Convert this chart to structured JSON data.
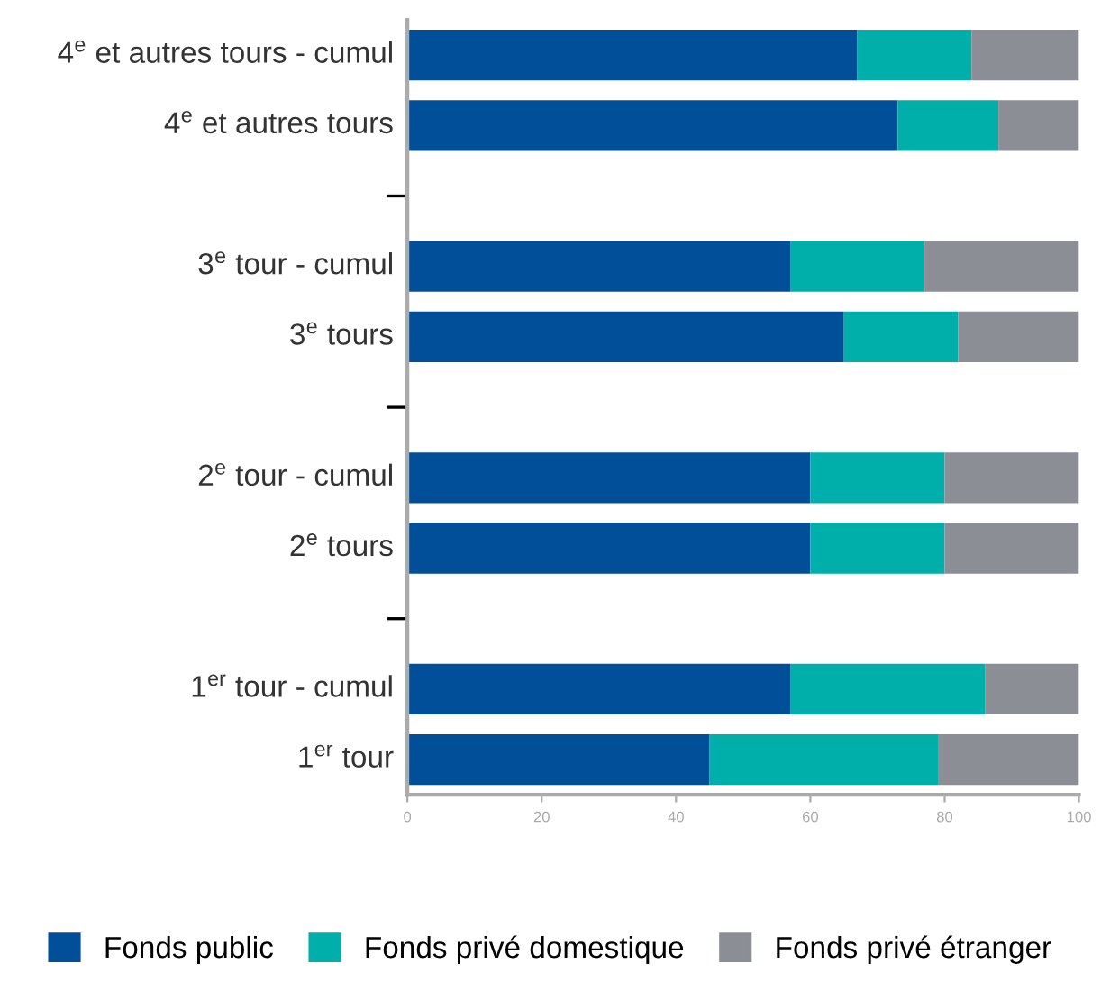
{
  "chart_data": {
    "type": "bar",
    "orientation": "horizontal",
    "stacked": true,
    "categories": [
      "4$^{e}$ et autres tours - cumul",
      "4$^{e}$ et autres tours",
      null,
      "3$^{e}$ tour - cumul",
      "3$^{e}$ tours",
      null,
      "2$^{e}$ tour - cumul",
      "2$^{e}$ tours",
      null,
      "1$^{er}$ tour - cumul",
      "1$^{er}$ tour"
    ],
    "series": [
      {
        "name": "Fonds public",
        "color": "#004f98",
        "values": [
          67,
          73,
          null,
          57,
          65,
          null,
          60,
          60,
          null,
          57,
          45
        ]
      },
      {
        "name": "Fonds privé domestique",
        "color": "#00afaa",
        "values": [
          17,
          15,
          null,
          20,
          17,
          null,
          20,
          20,
          null,
          29,
          34
        ]
      },
      {
        "name": "Fonds privé étranger",
        "color": "#8b8e95",
        "values": [
          16,
          12,
          null,
          23,
          18,
          null,
          20,
          20,
          null,
          14,
          21
        ]
      }
    ],
    "xlim": [
      0,
      100
    ],
    "xticks": [
      0,
      20,
      40,
      60,
      80,
      100
    ],
    "grid": false,
    "legend": "bottom"
  }
}
